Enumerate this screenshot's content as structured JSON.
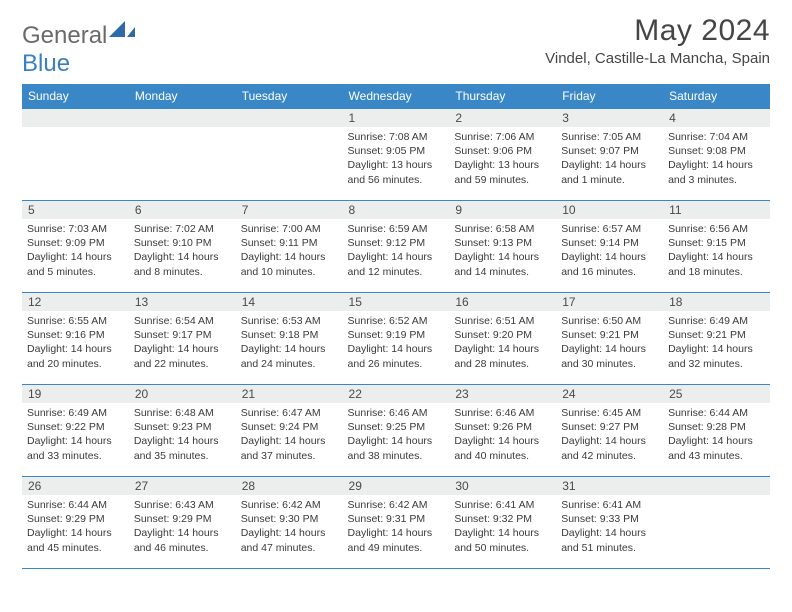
{
  "brand": {
    "word1": "General",
    "word2": "Blue"
  },
  "title": "May 2024",
  "location": "Vindel, Castille-La Mancha, Spain",
  "colors": {
    "header_bg": "#3a87c7",
    "header_text": "#ffffff",
    "daynum_bg": "#eceded",
    "text": "#3a3a3a",
    "brand_gray": "#6a6a6a",
    "brand_blue": "#3a7fc0"
  },
  "day_names": [
    "Sunday",
    "Monday",
    "Tuesday",
    "Wednesday",
    "Thursday",
    "Friday",
    "Saturday"
  ],
  "weeks": [
    [
      null,
      null,
      null,
      {
        "n": "1",
        "sunrise": "7:08 AM",
        "sunset": "9:05 PM",
        "daylight": "13 hours and 56 minutes."
      },
      {
        "n": "2",
        "sunrise": "7:06 AM",
        "sunset": "9:06 PM",
        "daylight": "13 hours and 59 minutes."
      },
      {
        "n": "3",
        "sunrise": "7:05 AM",
        "sunset": "9:07 PM",
        "daylight": "14 hours and 1 minute."
      },
      {
        "n": "4",
        "sunrise": "7:04 AM",
        "sunset": "9:08 PM",
        "daylight": "14 hours and 3 minutes."
      }
    ],
    [
      {
        "n": "5",
        "sunrise": "7:03 AM",
        "sunset": "9:09 PM",
        "daylight": "14 hours and 5 minutes."
      },
      {
        "n": "6",
        "sunrise": "7:02 AM",
        "sunset": "9:10 PM",
        "daylight": "14 hours and 8 minutes."
      },
      {
        "n": "7",
        "sunrise": "7:00 AM",
        "sunset": "9:11 PM",
        "daylight": "14 hours and 10 minutes."
      },
      {
        "n": "8",
        "sunrise": "6:59 AM",
        "sunset": "9:12 PM",
        "daylight": "14 hours and 12 minutes."
      },
      {
        "n": "9",
        "sunrise": "6:58 AM",
        "sunset": "9:13 PM",
        "daylight": "14 hours and 14 minutes."
      },
      {
        "n": "10",
        "sunrise": "6:57 AM",
        "sunset": "9:14 PM",
        "daylight": "14 hours and 16 minutes."
      },
      {
        "n": "11",
        "sunrise": "6:56 AM",
        "sunset": "9:15 PM",
        "daylight": "14 hours and 18 minutes."
      }
    ],
    [
      {
        "n": "12",
        "sunrise": "6:55 AM",
        "sunset": "9:16 PM",
        "daylight": "14 hours and 20 minutes."
      },
      {
        "n": "13",
        "sunrise": "6:54 AM",
        "sunset": "9:17 PM",
        "daylight": "14 hours and 22 minutes."
      },
      {
        "n": "14",
        "sunrise": "6:53 AM",
        "sunset": "9:18 PM",
        "daylight": "14 hours and 24 minutes."
      },
      {
        "n": "15",
        "sunrise": "6:52 AM",
        "sunset": "9:19 PM",
        "daylight": "14 hours and 26 minutes."
      },
      {
        "n": "16",
        "sunrise": "6:51 AM",
        "sunset": "9:20 PM",
        "daylight": "14 hours and 28 minutes."
      },
      {
        "n": "17",
        "sunrise": "6:50 AM",
        "sunset": "9:21 PM",
        "daylight": "14 hours and 30 minutes."
      },
      {
        "n": "18",
        "sunrise": "6:49 AM",
        "sunset": "9:21 PM",
        "daylight": "14 hours and 32 minutes."
      }
    ],
    [
      {
        "n": "19",
        "sunrise": "6:49 AM",
        "sunset": "9:22 PM",
        "daylight": "14 hours and 33 minutes."
      },
      {
        "n": "20",
        "sunrise": "6:48 AM",
        "sunset": "9:23 PM",
        "daylight": "14 hours and 35 minutes."
      },
      {
        "n": "21",
        "sunrise": "6:47 AM",
        "sunset": "9:24 PM",
        "daylight": "14 hours and 37 minutes."
      },
      {
        "n": "22",
        "sunrise": "6:46 AM",
        "sunset": "9:25 PM",
        "daylight": "14 hours and 38 minutes."
      },
      {
        "n": "23",
        "sunrise": "6:46 AM",
        "sunset": "9:26 PM",
        "daylight": "14 hours and 40 minutes."
      },
      {
        "n": "24",
        "sunrise": "6:45 AM",
        "sunset": "9:27 PM",
        "daylight": "14 hours and 42 minutes."
      },
      {
        "n": "25",
        "sunrise": "6:44 AM",
        "sunset": "9:28 PM",
        "daylight": "14 hours and 43 minutes."
      }
    ],
    [
      {
        "n": "26",
        "sunrise": "6:44 AM",
        "sunset": "9:29 PM",
        "daylight": "14 hours and 45 minutes."
      },
      {
        "n": "27",
        "sunrise": "6:43 AM",
        "sunset": "9:29 PM",
        "daylight": "14 hours and 46 minutes."
      },
      {
        "n": "28",
        "sunrise": "6:42 AM",
        "sunset": "9:30 PM",
        "daylight": "14 hours and 47 minutes."
      },
      {
        "n": "29",
        "sunrise": "6:42 AM",
        "sunset": "9:31 PM",
        "daylight": "14 hours and 49 minutes."
      },
      {
        "n": "30",
        "sunrise": "6:41 AM",
        "sunset": "9:32 PM",
        "daylight": "14 hours and 50 minutes."
      },
      {
        "n": "31",
        "sunrise": "6:41 AM",
        "sunset": "9:33 PM",
        "daylight": "14 hours and 51 minutes."
      },
      null
    ]
  ],
  "labels": {
    "sunrise": "Sunrise: ",
    "sunset": "Sunset: ",
    "daylight": "Daylight: "
  }
}
